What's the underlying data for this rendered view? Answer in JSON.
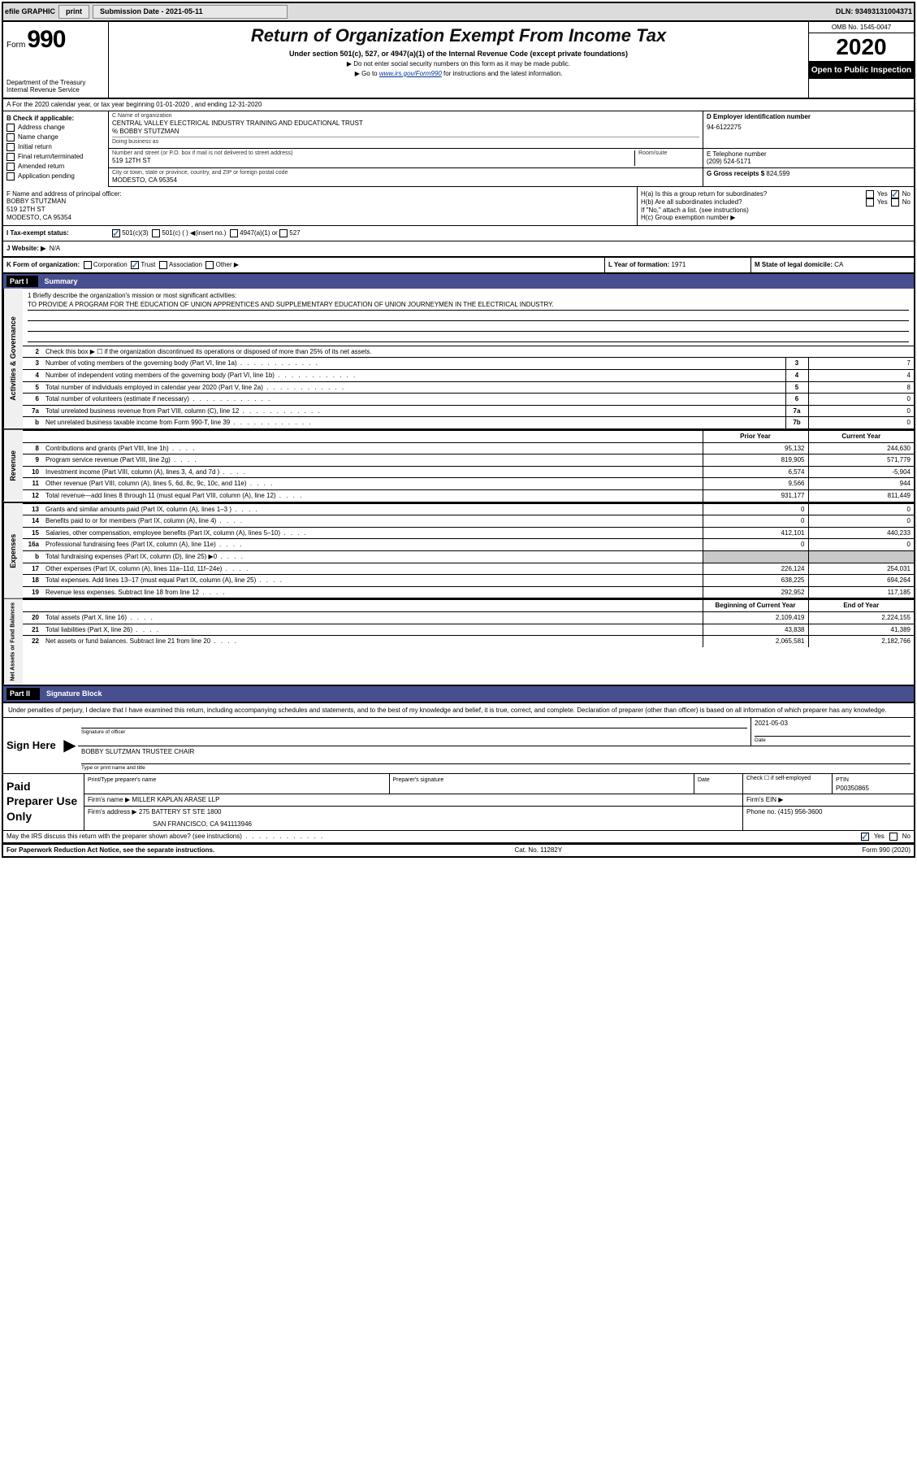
{
  "top_bar": {
    "efile": "efile GRAPHIC",
    "print": "print",
    "sub_lbl": "Submission Date - 2021-05-11",
    "dln": "DLN: 93493131004371"
  },
  "header": {
    "form": "Form",
    "form_num": "990",
    "dept": "Department of the Treasury\nInternal Revenue Service",
    "title": "Return of Organization Exempt From Income Tax",
    "sub1": "Under section 501(c), 527, or 4947(a)(1) of the Internal Revenue Code (except private foundations)",
    "sub2": "▶ Do not enter social security numbers on this form as it may be made public.",
    "sub3_pre": "▶ Go to ",
    "sub3_link": "www.irs.gov/Form990",
    "sub3_post": " for instructions and the latest information.",
    "omb": "OMB No. 1545-0047",
    "year": "2020",
    "opi": "Open to Public Inspection"
  },
  "line_a": "A  For the 2020 calendar year, or tax year beginning 01-01-2020    , and ending 12-31-2020",
  "box_b": {
    "label": "B Check if applicable:",
    "addr": "Address change",
    "name": "Name change",
    "init": "Initial return",
    "final": "Final return/terminated",
    "amended": "Amended return",
    "app": "Application pending"
  },
  "box_c": {
    "name_lbl": "C Name of organization",
    "org": "CENTRAL VALLEY ELECTRICAL INDUSTRY TRAINING AND EDUCATIONAL TRUST",
    "care_of": "% BOBBY STUTZMAN",
    "dba_lbl": "Doing business as",
    "addr_lbl": "Number and street (or P.O. box if mail is not delivered to street address)",
    "room_lbl": "Room/suite",
    "addr": "519 12TH ST",
    "city_lbl": "City or town, state or province, country, and ZIP or foreign postal code",
    "city": "MODESTO, CA  95354"
  },
  "box_d": {
    "lbl": "D Employer identification number",
    "val": "94-6122275"
  },
  "box_e": {
    "lbl": "E Telephone number",
    "val": "(209) 524-5171"
  },
  "box_g": {
    "lbl": "G Gross receipts $",
    "val": "824,599"
  },
  "box_f": {
    "lbl": "F Name and address of principal officer:",
    "name": "BOBBY STUTZMAN",
    "addr": "519 12TH ST",
    "city": "MODESTO, CA  95354"
  },
  "box_h": {
    "a": "H(a)  Is this a group return for subordinates?",
    "a_ans": "No",
    "b": "H(b)  Are all subordinates included?",
    "b_note": "If \"No,\" attach a list. (see instructions)",
    "c": "H(c)  Group exemption number ▶"
  },
  "box_i": {
    "lbl": "I  Tax-exempt status:",
    "c3": "501(c)(3)",
    "c": "501(c) (  ) ◀(insert no.)",
    "a1": "4947(a)(1) or",
    "s527": "527"
  },
  "box_j": {
    "lbl": "J  Website: ▶",
    "val": "N/A"
  },
  "box_k": "K Form of organization:",
  "k_corp": "Corporation",
  "k_trust": "Trust",
  "k_assoc": "Association",
  "k_other": "Other ▶",
  "box_l": {
    "lbl": "L Year of formation:",
    "val": "1971"
  },
  "box_m": {
    "lbl": "M State of legal domicile:",
    "val": "CA"
  },
  "part1": {
    "hdr": "Part I",
    "title": "Summary"
  },
  "summary": {
    "line1_lbl": "1  Briefly describe the organization's mission or most significant activities:",
    "line1_val": "TO PROVIDE A PROGRAM FOR THE EDUCATION OF UNION APPRENTICES AND SUPPLEMENTARY EDUCATION OF UNION JOURNEYMEN IN THE ELECTRICAL INDUSTRY.",
    "line2": "Check this box ▶ ☐  if the organization discontinued its operations or disposed of more than 25% of its net assets.",
    "rows_ag": [
      {
        "n": "3",
        "d": "Number of voting members of the governing body (Part VI, line 1a)",
        "b": "3",
        "v": "7"
      },
      {
        "n": "4",
        "d": "Number of independent voting members of the governing body (Part VI, line 1b)",
        "b": "4",
        "v": "4"
      },
      {
        "n": "5",
        "d": "Total number of individuals employed in calendar year 2020 (Part V, line 2a)",
        "b": "5",
        "v": "8"
      },
      {
        "n": "6",
        "d": "Total number of volunteers (estimate if necessary)",
        "b": "6",
        "v": "0"
      },
      {
        "n": "7a",
        "d": "Total unrelated business revenue from Part VIII, column (C), line 12",
        "b": "7a",
        "v": "0"
      },
      {
        "n": "b",
        "d": "Net unrelated business taxable income from Form 990-T, line 39",
        "b": "7b",
        "v": "0"
      }
    ],
    "col_prior": "Prior Year",
    "col_curr": "Current Year",
    "rows_rev": [
      {
        "n": "8",
        "d": "Contributions and grants (Part VIII, line 1h)",
        "p": "95,132",
        "c": "244,630"
      },
      {
        "n": "9",
        "d": "Program service revenue (Part VIII, line 2g)",
        "p": "819,905",
        "c": "571,779"
      },
      {
        "n": "10",
        "d": "Investment income (Part VIII, column (A), lines 3, 4, and 7d )",
        "p": "6,574",
        "c": "-5,904"
      },
      {
        "n": "11",
        "d": "Other revenue (Part VIII, column (A), lines 5, 6d, 8c, 9c, 10c, and 11e)",
        "p": "9,566",
        "c": "944"
      },
      {
        "n": "12",
        "d": "Total revenue—add lines 8 through 11 (must equal Part VIII, column (A), line 12)",
        "p": "931,177",
        "c": "811,449"
      }
    ],
    "rows_exp": [
      {
        "n": "13",
        "d": "Grants and similar amounts paid (Part IX, column (A), lines 1–3 )",
        "p": "0",
        "c": "0"
      },
      {
        "n": "14",
        "d": "Benefits paid to or for members (Part IX, column (A), line 4)",
        "p": "0",
        "c": "0"
      },
      {
        "n": "15",
        "d": "Salaries, other compensation, employee benefits (Part IX, column (A), lines 5–10)",
        "p": "412,101",
        "c": "440,233"
      },
      {
        "n": "16a",
        "d": "Professional fundraising fees (Part IX, column (A), line 11e)",
        "p": "0",
        "c": "0"
      },
      {
        "n": "b",
        "d": "Total fundraising expenses (Part IX, column (D), line 25) ▶0",
        "p": "",
        "c": "",
        "shaded": true
      },
      {
        "n": "17",
        "d": "Other expenses (Part IX, column (A), lines 11a–11d, 11f–24e)",
        "p": "226,124",
        "c": "254,031"
      },
      {
        "n": "18",
        "d": "Total expenses. Add lines 13–17 (must equal Part IX, column (A), line 25)",
        "p": "638,225",
        "c": "694,264"
      },
      {
        "n": "19",
        "d": "Revenue less expenses. Subtract line 18 from line 12",
        "p": "292,952",
        "c": "117,185"
      }
    ],
    "col_beg": "Beginning of Current Year",
    "col_end": "End of Year",
    "rows_net": [
      {
        "n": "20",
        "d": "Total assets (Part X, line 16)",
        "p": "2,109,419",
        "c": "2,224,155"
      },
      {
        "n": "21",
        "d": "Total liabilities (Part X, line 26)",
        "p": "43,838",
        "c": "41,389"
      },
      {
        "n": "22",
        "d": "Net assets or fund balances. Subtract line 21 from line 20",
        "p": "2,065,581",
        "c": "2,182,766"
      }
    ]
  },
  "sides": {
    "ag": "Activities & Governance",
    "rev": "Revenue",
    "exp": "Expenses",
    "net": "Net Assets or Fund Balances"
  },
  "part2": {
    "hdr": "Part II",
    "title": "Signature Block"
  },
  "sig_text": "Under penalties of perjury, I declare that I have examined this return, including accompanying schedules and statements, and to the best of my knowledge and belief, it is true, correct, and complete. Declaration of preparer (other than officer) is based on all information of which preparer has any knowledge.",
  "sign_here": "Sign Here",
  "sig_officer_lbl": "Signature of officer",
  "sig_date_lbl": "Date",
  "sig_date": "2021-05-03",
  "sig_name": "BOBBY SLUTZMAN  TRUSTEE CHAIR",
  "sig_name_lbl": "Type or print name and title",
  "paid_lbl": "Paid Preparer Use Only",
  "paid": {
    "prep_name_lbl": "Print/Type preparer's name",
    "prep_sig_lbl": "Preparer's signature",
    "date_lbl": "Date",
    "check_lbl": "Check ☐ if self-employed",
    "ptin_lbl": "PTIN",
    "ptin": "P00350865",
    "firm_name_lbl": "Firm's name    ▶",
    "firm_name": "MILLER KAPLAN ARASE LLP",
    "firm_ein_lbl": "Firm's EIN ▶",
    "firm_addr_lbl": "Firm's address ▶",
    "firm_addr": "275 BATTERY ST STE 1800",
    "firm_city": "SAN FRANCISCO, CA  941113946",
    "phone_lbl": "Phone no.",
    "phone": "(415) 956-3600"
  },
  "discuss": "May the IRS discuss this return with the preparer shown above? (see instructions)",
  "discuss_yes": "Yes",
  "discuss_no": "No",
  "footer": {
    "left": "For Paperwork Reduction Act Notice, see the separate instructions.",
    "mid": "Cat. No. 11282Y",
    "right": "Form 990 (2020)"
  }
}
